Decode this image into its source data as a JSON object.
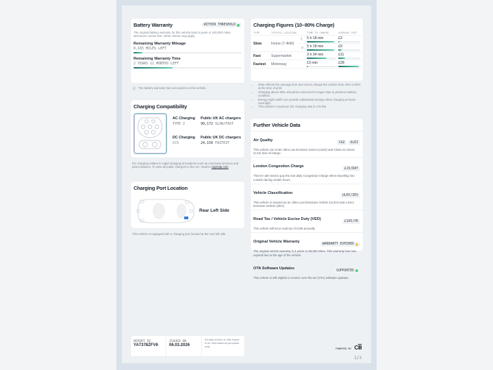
{
  "battery": {
    "title": "Battery Warranty",
    "badge": "WITHIN THRESHOLD",
    "desc": "The original battery warranty for this vehicle lasts 8 years or 100,000 miles, whichever comes first. Other criteria may apply.",
    "mileage_label": "Remaining Warranty Mileage",
    "mileage_value": "8,165 MILES LEFT",
    "mileage_fraction": 0.08,
    "time_label": "Remaining Warranty Time",
    "time_value": "2 YEARS 11 MONTHS LEFT",
    "time_fraction": 0.36,
    "note": "The battery warranty has not expired on this vehicle.",
    "status_color": "#4cd07d"
  },
  "compat": {
    "title": "Charging Compatibility",
    "ac_label": "AC Charging",
    "ac_type": "TYPE 2",
    "ac_public_label": "Public UK AC chargers",
    "ac_public_value": "90,172",
    "ac_public_speed": "SLOW/FAST",
    "dc_label": "DC Charging",
    "dc_type": "CCS",
    "dc_public_label": "Public UK DC chargers",
    "dc_public_value": "24,150",
    "dc_public_speed": "FASTEST",
    "note": "DC charging relates to rapid charging at locations such as motorway services and petrol stations. To view all public chargers in the UK, head to",
    "link": "zapmap.com"
  },
  "port": {
    "title": "Charging Port Location",
    "location": "Rear Left Side",
    "note": "This vehicle is equipped with a charging port located at the rear left side"
  },
  "figures": {
    "title": "Charging Figures (10–80% Charge)",
    "headers": [
      "TYPE",
      "TYPICAL LOCATION",
      "TIME TO CHARGE",
      "AVERAGE COST"
    ],
    "rows": [
      {
        "type": "Slow",
        "location": "Home (7.4kW)",
        "icon": "moon-icon",
        "time": "5 h 18 min",
        "time_fraction": 0.95,
        "cost": "£3",
        "cost_fraction": 0.05
      },
      {
        "type": "",
        "location": "",
        "icon": "sun-icon",
        "time": "5 h 18 min",
        "time_fraction": 0.95,
        "cost": "£9",
        "cost_fraction": 0.15
      },
      {
        "type": "Fast",
        "location": "Supermarket",
        "icon": "",
        "time": "3 h 34 min",
        "time_fraction": 0.68,
        "cost": "£11",
        "cost_fraction": 0.3
      },
      {
        "type": "Fastest",
        "location": "Motorway",
        "icon": "",
        "time": "13 min",
        "time_fraction": 0.04,
        "cost": "£28",
        "cost_fraction": 0.95
      }
    ],
    "bullets": [
      "Data reflects the average time and cost to charge the vehicle from 10% to 80% at the time of print.",
      "Charging above 80% should be reserved for longer trips to preserve battery condition.",
      "Energy night tariffs can provide substantial savings when charging at home overnight.",
      "This vehicle's maximum DC charging rate is 170 kW."
    ]
  },
  "further": {
    "title": "Further Vehicle Data",
    "items": [
      {
        "title": "Air Quality",
        "badges": [
          "CAZ",
          "ULEZ"
        ],
        "desc": "This vehicle can enter Ultra Low Emission Zones (ULEZ) and Clean Air Zones (CAZ) free-of-charge."
      },
      {
        "title": "London Congestion Charge",
        "badges": [
          "£15/DAY"
        ],
        "desc": "This EV will need to pay the £15 daily Congestion Charge when travelling into London during certain hours."
      },
      {
        "title": "Vehicle Classification",
        "badges": [
          "ULEV/ZEV"
        ],
        "desc": "This vehicle is classed as an Ultra Low Emissions Vehicle (ULEV) and a Zero Emission Vehicle (ZEV)."
      },
      {
        "title": "Road Tax / Vehicle Excise Duty (VED)",
        "badges": [
          "£195/YR"
        ],
        "desc": "This vehicle will incur road tax of £195 annually."
      },
      {
        "title": "Original Vehicle Warranty",
        "badges": [
          "WARRANTY EXPIRED"
        ],
        "dot": "#f2c94c",
        "desc": "The original vehicle warranty is 4 years or 50,000 miles. This warranty has now expired due to the age of the vehicle."
      },
      {
        "title": "OTA Software Updates",
        "badges": [
          "SUPPORTED"
        ],
        "dot": "#4cd07d",
        "desc": "This vehicle is still eligible to receive over-the-air (OTA) software updates."
      }
    ]
  },
  "footer": {
    "report_id_label": "REPORT ID",
    "report_id": "YA7378ZFV6",
    "issued_label": "ISSUED ON",
    "issued": "06.03.2026",
    "disclaimer": "All data shown on this report is for informational purposes only.",
    "powered_by": "POWERED BY",
    "page": "2/3"
  }
}
